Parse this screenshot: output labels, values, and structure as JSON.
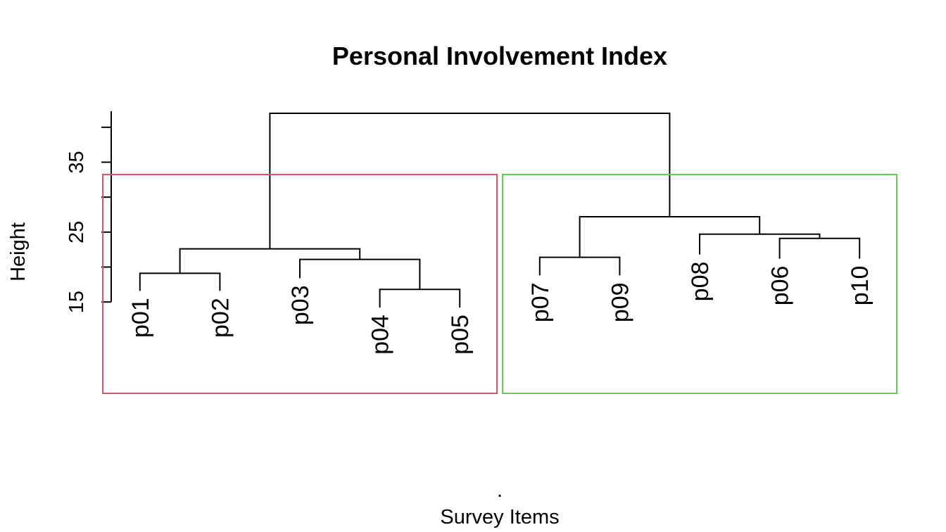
{
  "chart_data": {
    "type": "dendrogram",
    "title": "Personal Involvement Index",
    "xlabel": "Survey Items",
    "xlabel_sub": ".",
    "ylabel": "Height",
    "yticks": [
      15,
      25,
      35
    ],
    "ylim": [
      12.8,
      42.3
    ],
    "leaves": [
      "p01",
      "p02",
      "p03",
      "p04",
      "p05",
      "p07",
      "p09",
      "p08",
      "p06",
      "p10"
    ],
    "leaf_heights": [
      16.6,
      16.6,
      18.4,
      14.2,
      14.2,
      18.8,
      18.8,
      21.8,
      21.2,
      21.2
    ],
    "merges": [
      {
        "left": "p01",
        "right": "p02",
        "height": 19.1
      },
      {
        "left": "p04",
        "right": "p05",
        "height": 16.8
      },
      {
        "left": "p03",
        "right": "p04,p05",
        "height": 21.1
      },
      {
        "left": "p01,p02",
        "right": "p03,p04,p05",
        "height": 22.6
      },
      {
        "left": "p07",
        "right": "p09",
        "height": 21.4
      },
      {
        "left": "p06",
        "right": "p10",
        "height": 24.1
      },
      {
        "left": "p08",
        "right": "p06,p10",
        "height": 24.7
      },
      {
        "left": "p07,p09",
        "right": "p08,p06,p10",
        "height": 27.2
      },
      {
        "left": "p01,p02,p03,p04,p05",
        "right": "p07,p09,p08,p06,p10",
        "height": 42.0
      }
    ],
    "clusters": [
      {
        "members": [
          "p01",
          "p02",
          "p03",
          "p04",
          "p05"
        ],
        "color": "#DF536B"
      },
      {
        "members": [
          "p07",
          "p09",
          "p08",
          "p06",
          "p10"
        ],
        "color": "#61D04F"
      }
    ]
  }
}
